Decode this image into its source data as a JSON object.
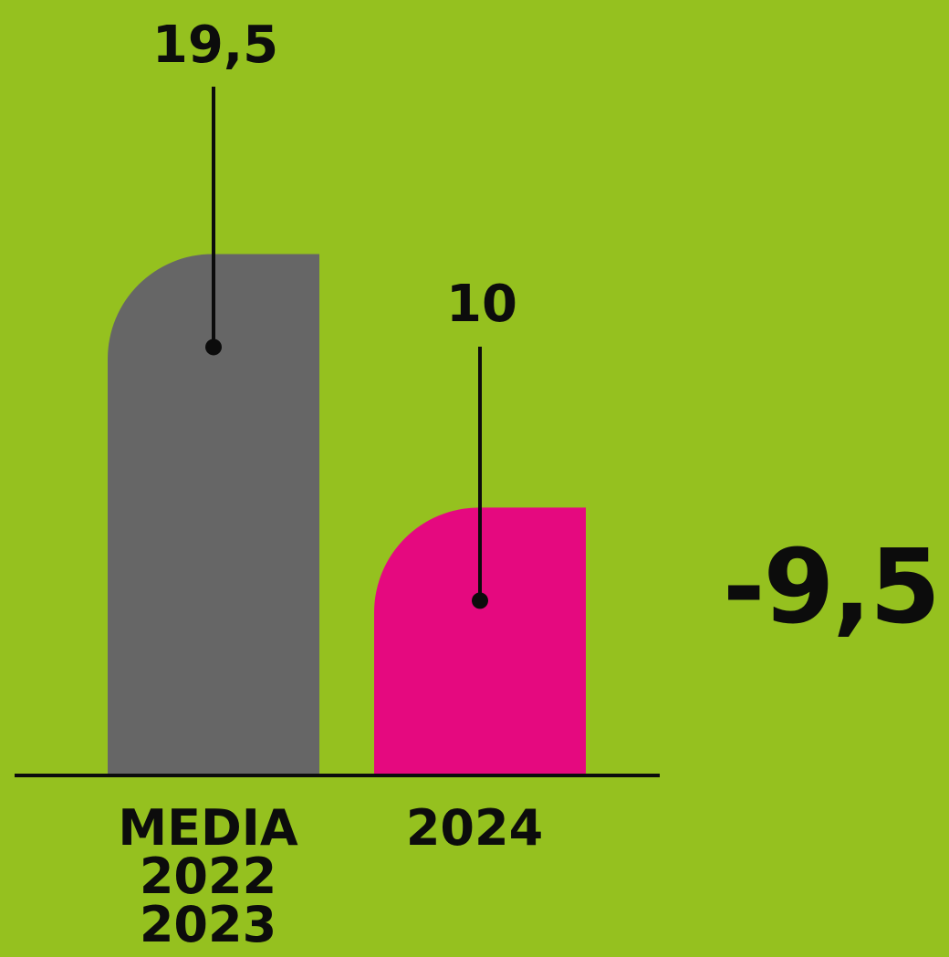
{
  "background": "#95c11f",
  "chart_data": {
    "type": "bar",
    "categories": [
      "MEDIA\n2022\n2023",
      "2024"
    ],
    "values": [
      19.5,
      10
    ],
    "value_labels": [
      "19,5",
      "10"
    ],
    "colors": [
      "#666666",
      "#e5097f"
    ],
    "ylim": [
      0,
      27
    ],
    "title": "",
    "xlabel": "",
    "ylabel": "",
    "grid": false,
    "annotation": "-9,5"
  }
}
